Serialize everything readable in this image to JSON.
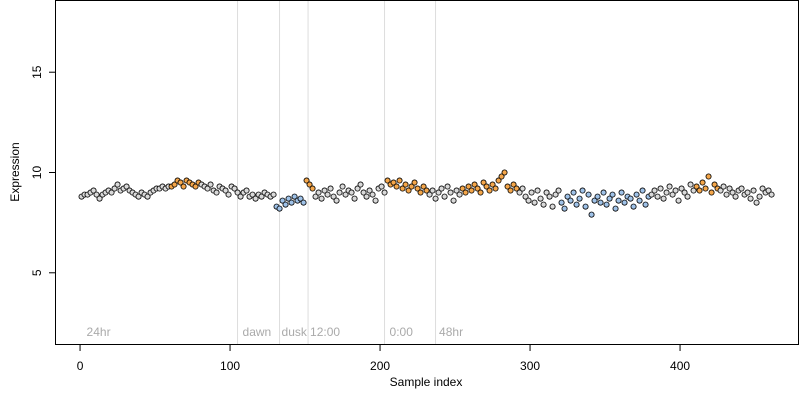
{
  "chart_data": {
    "type": "scatter",
    "xlabel": "Sample index",
    "ylabel": "Expression",
    "xlim": [
      -16.7,
      479.3
    ],
    "ylim": [
      1.4,
      18.6
    ],
    "xticks": [
      0,
      100,
      200,
      300,
      400
    ],
    "yticks": [
      5,
      10,
      15
    ],
    "vlines": [
      105,
      133,
      152,
      203,
      237
    ],
    "annotations": [
      {
        "x": 3,
        "y": 2,
        "text": "24hr"
      },
      {
        "x": 107,
        "y": 2,
        "text": "dawn"
      },
      {
        "x": 133,
        "y": 2,
        "text": "dusk"
      },
      {
        "x": 152,
        "y": 2,
        "text": "12:00"
      },
      {
        "x": 205,
        "y": 2,
        "text": "0:00"
      },
      {
        "x": 238,
        "y": 2,
        "text": "48hr"
      }
    ],
    "series": [
      {
        "color": "#d9d9d9",
        "x": [
          1,
          3,
          5,
          7,
          9,
          11,
          13,
          15,
          17,
          19,
          21,
          23,
          25,
          27,
          29,
          31,
          33,
          35,
          37,
          39,
          41,
          43,
          45,
          47,
          49,
          51,
          53,
          55,
          57,
          59
        ],
        "values": [
          8.8,
          8.9,
          8.9,
          9.0,
          9.1,
          8.9,
          8.7,
          8.9,
          9.0,
          9.1,
          9.0,
          9.2,
          9.4,
          9.1,
          9.2,
          9.3,
          9.1,
          9.0,
          8.9,
          8.8,
          9.0,
          8.9,
          8.8,
          9.0,
          9.1,
          9.2,
          9.2,
          9.3,
          9.2,
          9.3
        ]
      },
      {
        "color": "#f4a64a",
        "x": [
          61,
          63,
          65,
          67,
          69,
          71,
          73,
          75,
          77,
          79
        ],
        "values": [
          9.3,
          9.4,
          9.6,
          9.5,
          9.3,
          9.6,
          9.5,
          9.4,
          9.3,
          9.5
        ]
      },
      {
        "color": "#d9d9d9",
        "x": [
          81,
          83,
          85,
          87,
          89,
          91,
          93,
          95,
          97,
          99,
          101,
          103,
          105,
          107,
          109,
          111,
          113,
          115,
          117,
          119,
          121,
          123,
          125,
          127,
          129
        ],
        "values": [
          9.4,
          9.3,
          9.2,
          9.4,
          9.1,
          9.0,
          9.3,
          9.2,
          9.1,
          8.9,
          9.3,
          9.2,
          9.0,
          8.8,
          9.0,
          9.1,
          8.8,
          8.9,
          8.7,
          8.9,
          8.8,
          9.0,
          8.9,
          8.8,
          8.9
        ]
      },
      {
        "color": "#9fc2e8",
        "x": [
          131,
          133,
          135,
          137,
          139,
          141,
          143,
          145,
          147,
          149
        ],
        "values": [
          8.3,
          8.2,
          8.6,
          8.4,
          8.7,
          8.5,
          8.8,
          8.6,
          8.7,
          8.5
        ]
      },
      {
        "color": "#f4a64a",
        "x": [
          151,
          153,
          155
        ],
        "values": [
          9.6,
          9.4,
          9.2
        ]
      },
      {
        "color": "#d9d9d9",
        "x": [
          157,
          159,
          161,
          163,
          165,
          167,
          169,
          171,
          173,
          175,
          177,
          179,
          181,
          183,
          185,
          187,
          189,
          191,
          193,
          195,
          197,
          199,
          201,
          203
        ],
        "values": [
          8.8,
          9.0,
          8.7,
          9.1,
          8.9,
          9.2,
          8.8,
          8.6,
          9.0,
          9.3,
          8.9,
          9.1,
          9.0,
          8.7,
          9.2,
          9.4,
          9.0,
          8.8,
          9.1,
          8.9,
          8.6,
          9.2,
          9.3,
          9.0
        ]
      },
      {
        "color": "#f4a64a",
        "x": [
          205,
          207,
          209,
          211,
          213,
          215,
          217,
          219,
          221,
          223,
          225,
          227,
          229,
          231
        ],
        "values": [
          9.6,
          9.4,
          9.5,
          9.3,
          9.6,
          9.2,
          9.4,
          9.1,
          9.3,
          9.5,
          9.2,
          9.0,
          9.3,
          9.1
        ]
      },
      {
        "color": "#d9d9d9",
        "x": [
          233,
          235,
          237,
          239,
          241,
          243,
          245,
          247,
          249,
          251,
          253
        ],
        "values": [
          8.9,
          9.1,
          8.7,
          9.0,
          9.2,
          8.8,
          9.3,
          9.0,
          8.6,
          9.1,
          8.9
        ]
      },
      {
        "color": "#f4a64a",
        "x": [
          255,
          257,
          259,
          261,
          263,
          265,
          267,
          269,
          271,
          273,
          275,
          277,
          279,
          281,
          283,
          285,
          287,
          289,
          291
        ],
        "values": [
          9.2,
          9.0,
          9.3,
          9.1,
          9.4,
          9.2,
          9.0,
          9.5,
          9.3,
          9.1,
          9.4,
          9.2,
          9.6,
          9.8,
          10.0,
          9.3,
          9.1,
          9.4,
          9.2
        ]
      },
      {
        "color": "#d9d9d9",
        "x": [
          293,
          295,
          297,
          299,
          301,
          303,
          305,
          307,
          309,
          311,
          313,
          315,
          317,
          319
        ],
        "values": [
          9.0,
          9.2,
          8.8,
          8.6,
          9.0,
          8.5,
          9.1,
          8.7,
          8.4,
          9.0,
          8.8,
          8.3,
          8.9,
          9.1
        ]
      },
      {
        "color": "#9fc2e8",
        "x": [
          321,
          323,
          325,
          327,
          329,
          331,
          333,
          335,
          337,
          339,
          341,
          343,
          345,
          347,
          349,
          351,
          353,
          355,
          357,
          359,
          361,
          363,
          365,
          367,
          369,
          371,
          373,
          375,
          377,
          379
        ],
        "values": [
          8.5,
          8.2,
          8.8,
          8.6,
          9.0,
          8.4,
          8.7,
          9.1,
          8.3,
          8.9,
          7.9,
          8.6,
          8.8,
          8.5,
          9.0,
          8.4,
          8.7,
          8.9,
          8.2,
          8.6,
          9.0,
          8.5,
          8.8,
          8.7,
          8.3,
          8.9,
          8.6,
          9.1,
          8.4,
          8.8
        ]
      },
      {
        "color": "#d9d9d9",
        "x": [
          381,
          383,
          385,
          387,
          389,
          391,
          393,
          395,
          397,
          399,
          401,
          403,
          405,
          407,
          409
        ],
        "values": [
          8.9,
          9.1,
          8.8,
          9.2,
          8.7,
          9.0,
          9.3,
          8.9,
          9.1,
          8.6,
          9.2,
          9.0,
          8.8,
          9.4,
          9.1
        ]
      },
      {
        "color": "#f4a64a",
        "x": [
          411,
          413,
          415,
          417,
          419,
          421,
          423,
          425
        ],
        "values": [
          9.3,
          9.1,
          9.5,
          9.2,
          9.8,
          9.0,
          9.4,
          9.2
        ]
      },
      {
        "color": "#d9d9d9",
        "x": [
          427,
          429,
          431,
          433,
          435,
          437,
          439,
          441,
          443,
          445,
          447,
          449,
          451,
          453,
          455,
          457,
          459,
          461
        ],
        "values": [
          9.1,
          9.3,
          8.9,
          9.2,
          9.0,
          8.8,
          9.1,
          9.2,
          8.9,
          9.0,
          8.7,
          9.1,
          8.5,
          8.8,
          9.2,
          9.0,
          9.1,
          8.9
        ]
      }
    ]
  }
}
